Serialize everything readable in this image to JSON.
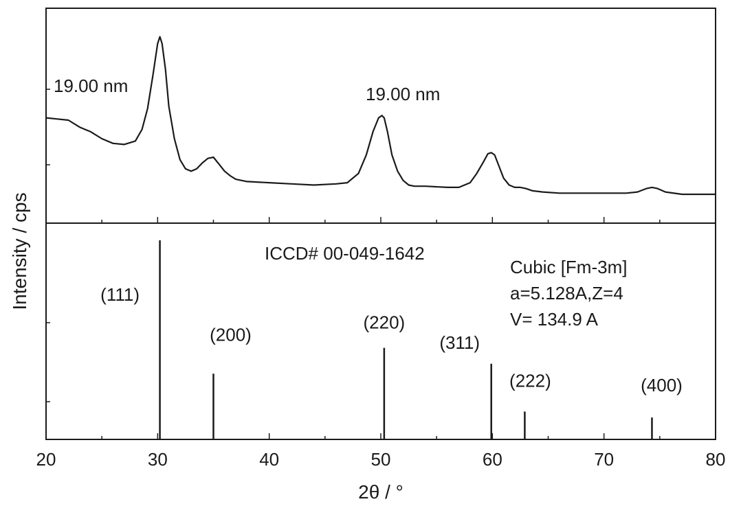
{
  "chart_data": [
    {
      "type": "line",
      "panel": "top",
      "series": [
        {
          "x": [
            20,
            21,
            22,
            23,
            24,
            25,
            26,
            27,
            28,
            28.6,
            29.1,
            29.6,
            30.0,
            30.2,
            30.4,
            30.7,
            31.0,
            31.5,
            32.0,
            32.5,
            33.0,
            33.5,
            34.0,
            34.5,
            35.0,
            35.5,
            36.0,
            36.5,
            37.0,
            38.0,
            40.0,
            42.0,
            44.0,
            46.0,
            47.0,
            48.0,
            48.7,
            49.3,
            49.8,
            50.1,
            50.3,
            50.6,
            51.0,
            51.5,
            52.0,
            52.5,
            53.0,
            54.0,
            56.0,
            57.0,
            58.0,
            58.6,
            59.2,
            59.6,
            59.9,
            60.2,
            60.6,
            61.0,
            61.5,
            62.0,
            62.5,
            63.0,
            63.6,
            64.5,
            66.0,
            68.0,
            70.0,
            72.0,
            73.0,
            73.8,
            74.3,
            74.8,
            75.5,
            77.0,
            80.0
          ],
          "y": [
            61,
            60.5,
            60,
            57,
            55,
            52,
            50,
            49.5,
            51,
            56,
            65,
            80,
            93,
            96,
            93,
            82,
            66,
            52,
            43,
            39,
            38,
            39,
            41.5,
            43.5,
            44,
            41,
            38,
            36,
            34.5,
            33.5,
            33,
            32.5,
            32,
            32.5,
            33,
            37,
            45,
            55,
            61,
            62,
            61,
            55,
            45,
            38,
            34,
            32,
            31.5,
            31.5,
            31,
            31,
            33,
            37,
            42,
            45.5,
            46,
            45,
            40,
            35,
            32,
            31,
            31,
            30.5,
            29.5,
            29,
            28.5,
            28.5,
            28.5,
            28.5,
            29,
            30.5,
            31,
            30.5,
            29,
            28,
            28
          ]
        }
      ],
      "annotations": [
        "19.00 nm",
        "19.00 nm"
      ]
    },
    {
      "type": "bar",
      "panel": "bottom",
      "reference": "ICCD# 00-049-1642",
      "peaks": [
        {
          "label": "(111)",
          "x": 30.2,
          "y": 100
        },
        {
          "label": "(200)",
          "x": 35.0,
          "y": 33
        },
        {
          "label": "(220)",
          "x": 50.3,
          "y": 46
        },
        {
          "label": "(311)",
          "x": 59.9,
          "y": 38
        },
        {
          "label": "(222)",
          "x": 62.9,
          "y": 14
        },
        {
          "label": "(400)",
          "x": 74.3,
          "y": 11
        }
      ],
      "info": [
        "Cubic [Fm-3m]",
        "a=5.128A,Z=4",
        "V= 134.9 A"
      ]
    }
  ],
  "axes": {
    "xlabel": "2θ / °",
    "ylabel": "Intensity / cps",
    "xlim": [
      20,
      80
    ],
    "x_ticks": [
      "20",
      "30",
      "40",
      "50",
      "60",
      "70",
      "80"
    ]
  }
}
